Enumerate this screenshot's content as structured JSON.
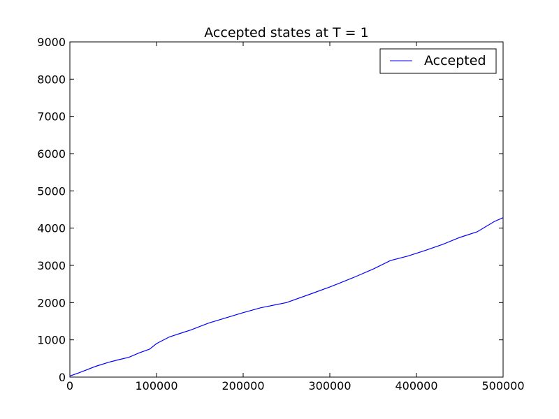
{
  "chart_data": {
    "type": "line",
    "title": "Accepted states at T = 1",
    "xlabel": "",
    "ylabel": "",
    "xlim": [
      0,
      500000
    ],
    "ylim": [
      0,
      9000
    ],
    "x_ticks": [
      0,
      100000,
      200000,
      300000,
      400000,
      500000
    ],
    "x_tick_labels": [
      "0",
      "100000",
      "200000",
      "300000",
      "400000",
      "500000"
    ],
    "y_ticks": [
      0,
      1000,
      2000,
      3000,
      4000,
      5000,
      6000,
      7000,
      8000,
      9000
    ],
    "y_tick_labels": [
      "0",
      "1000",
      "2000",
      "3000",
      "4000",
      "5000",
      "6000",
      "7000",
      "8000",
      "9000"
    ],
    "grid": false,
    "legend_position": "upper-right",
    "series": [
      {
        "name": "Accepted",
        "color": "#0000ff",
        "x": [
          0,
          10000,
          20000,
          30000,
          45000,
          55000,
          68000,
          80000,
          92000,
          100000,
          115000,
          140000,
          160000,
          180000,
          200000,
          220000,
          250000,
          280000,
          300000,
          310000,
          330000,
          350000,
          370000,
          390000,
          410000,
          430000,
          450000,
          470000,
          490000,
          500000
        ],
        "y": [
          30,
          110,
          200,
          290,
          400,
          460,
          530,
          650,
          750,
          900,
          1080,
          1270,
          1450,
          1590,
          1730,
          1860,
          2000,
          2250,
          2420,
          2510,
          2700,
          2900,
          3130,
          3250,
          3400,
          3560,
          3750,
          3900,
          4180,
          4280
        ]
      }
    ]
  }
}
